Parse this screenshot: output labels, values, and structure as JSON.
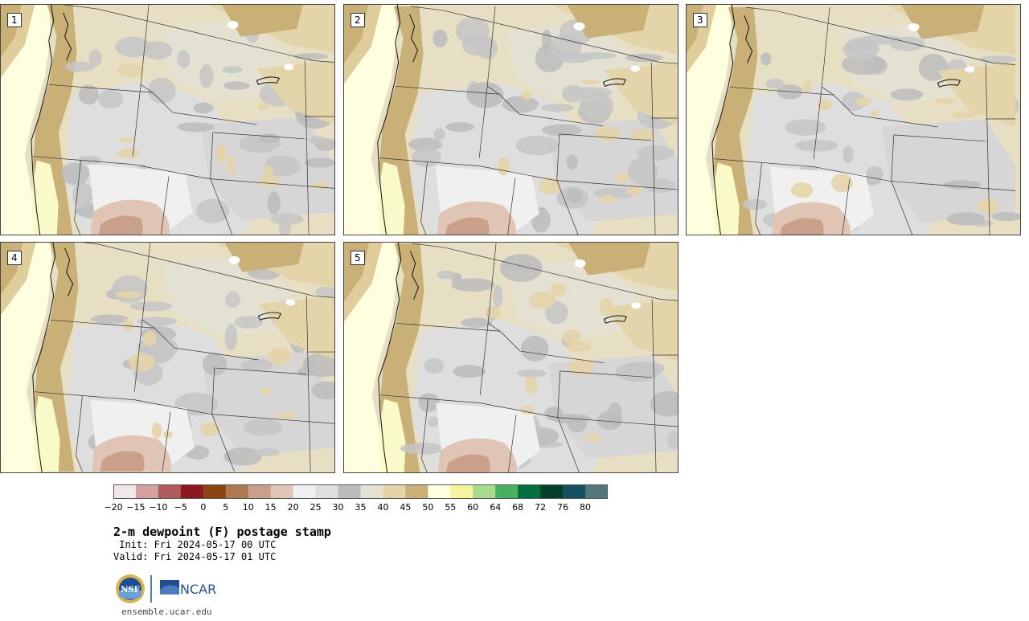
{
  "panels": [
    {
      "label": "1"
    },
    {
      "label": "2"
    },
    {
      "label": "3"
    },
    {
      "label": "4"
    },
    {
      "label": "5"
    }
  ],
  "colorbar": {
    "colors": [
      "#f2e8e8",
      "#d4a0a2",
      "#b05a5e",
      "#8a1a1f",
      "#8b4513",
      "#b07850",
      "#c9a08a",
      "#e0c4b4",
      "#f0f0f0",
      "#dedede",
      "#bcbcbc",
      "#e4e0d2",
      "#e4d4aa",
      "#c9b077",
      "#ffffe0",
      "#f5f5a0",
      "#a8dc8c",
      "#48b060",
      "#007040",
      "#004028",
      "#135060",
      "#507878"
    ],
    "tick_labels": [
      "−20",
      "−15",
      "−10",
      "−5",
      "0",
      "5",
      "10",
      "15",
      "20",
      "25",
      "30",
      "35",
      "40",
      "45",
      "50",
      "55",
      "60",
      "64",
      "68",
      "72",
      "76",
      "80"
    ]
  },
  "title": "2-m dewpoint (F) postage stamp",
  "init": " Init: Fri 2024-05-17 00 UTC",
  "valid": "Valid: Fri 2024-05-17 01 UTC",
  "logo": {
    "nsf": "NSF",
    "ncar": "NCAR"
  },
  "site": "ensemble.ucar.edu"
}
